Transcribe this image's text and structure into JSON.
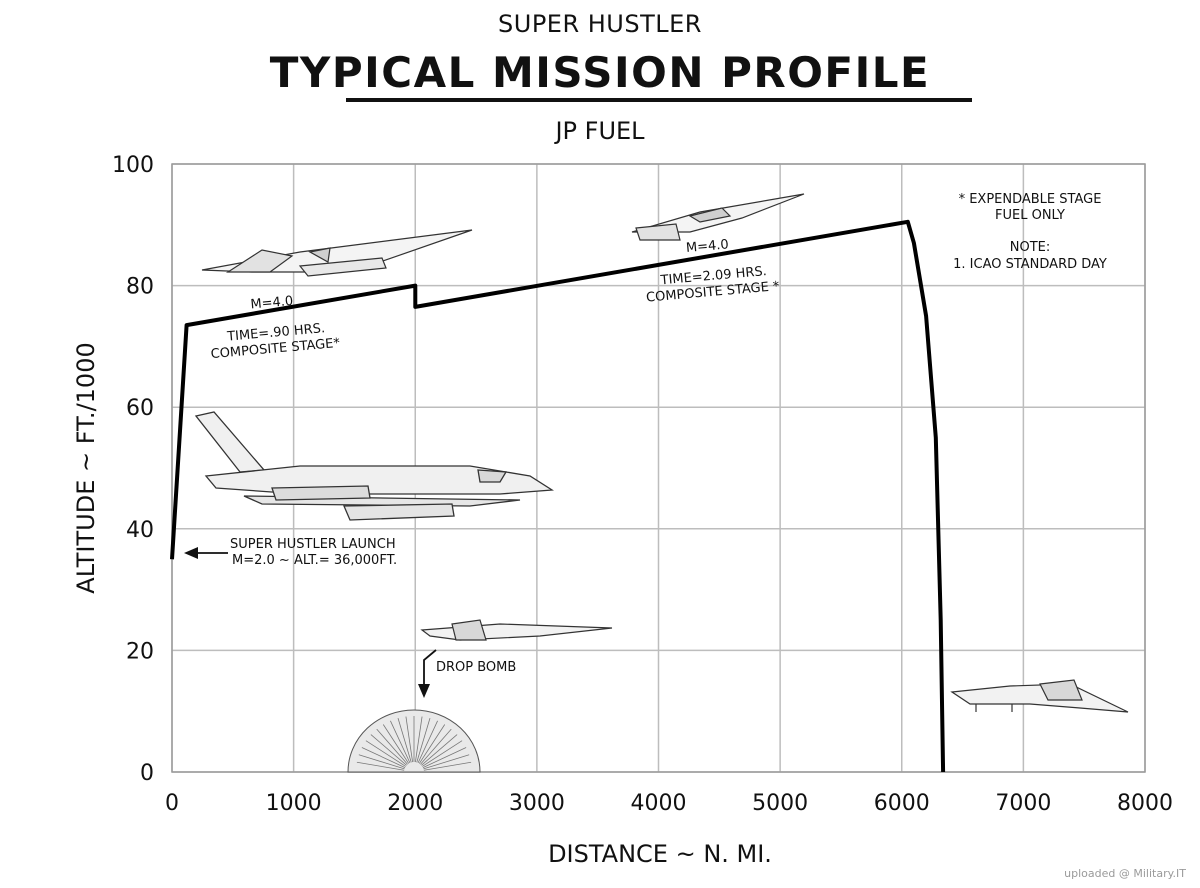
{
  "supertitle": "SUPER HUSTLER",
  "title": "TYPICAL MISSION PROFILE",
  "subtitle": "JP FUEL",
  "watermark": "uploaded @ Military.IT",
  "notes": {
    "expendable": [
      "* EXPENDABLE STAGE",
      "FUEL ONLY"
    ],
    "note_heading": "NOTE:",
    "note_1": "1. ICAO STANDARD DAY"
  },
  "annotations": {
    "launch": [
      "SUPER HUSTLER LAUNCH",
      "M=2.0 ~ ALT.= 36,000FT."
    ],
    "segment1": {
      "mach": "M=4.0",
      "time": "TIME=.90 HRS.",
      "stage": "COMPOSITE STAGE*"
    },
    "segment2": {
      "mach": "M=4.0",
      "time": "TIME=2.09 HRS.",
      "stage": "COMPOSITE STAGE *"
    },
    "drop_bomb": "DROP BOMB"
  },
  "chart_data": {
    "type": "line",
    "title": "TYPICAL MISSION PROFILE",
    "subtitle": "JP FUEL",
    "xlabel": "DISTANCE ~ N. MI.",
    "ylabel": "ALTITUDE ~ FT./1000",
    "xlim": [
      0,
      8000
    ],
    "ylim": [
      0,
      100
    ],
    "xticks": [
      0,
      1000,
      2000,
      3000,
      4000,
      5000,
      6000,
      7000,
      8000
    ],
    "yticks": [
      0,
      20,
      40,
      60,
      80,
      100
    ],
    "grid": true,
    "series": [
      {
        "x": [
          0,
          120,
          2000,
          2000,
          6050,
          6100,
          6200,
          6280,
          6320,
          6340
        ],
        "y": [
          35,
          73.5,
          80,
          76.5,
          90.5,
          87,
          75,
          55,
          25,
          0
        ]
      }
    ]
  }
}
